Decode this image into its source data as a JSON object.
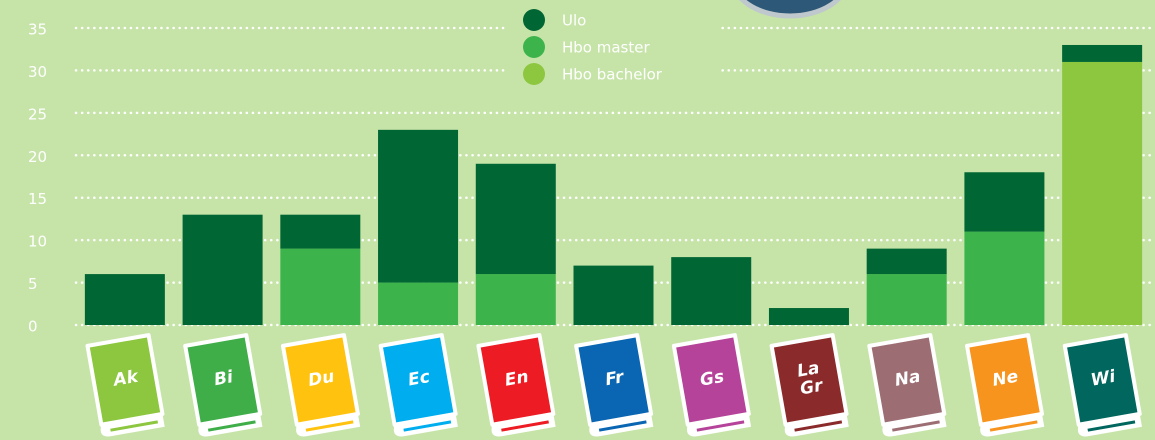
{
  "chart_data": {
    "type": "stacked_bar",
    "categories": [
      "Ak",
      "Bi",
      "Du",
      "Ec",
      "En",
      "Fr",
      "Gs",
      "La Gr",
      "Na",
      "Ne",
      "Wi"
    ],
    "category_colors": [
      "#8dc63f",
      "#3fae49",
      "#ffc20e",
      "#00aeef",
      "#ed1c24",
      "#0a66b2",
      "#b5439a",
      "#8b2a2a",
      "#9c6e74",
      "#f7941d",
      "#00665e"
    ],
    "series": [
      {
        "name": "Hbo bachelor",
        "color": "#8dc63f",
        "values": [
          0,
          0,
          0,
          0,
          0,
          0,
          0,
          0,
          0,
          0,
          31
        ]
      },
      {
        "name": "Hbo master",
        "color": "#3cb44b",
        "values": [
          0,
          0,
          9,
          5,
          6,
          0,
          0,
          0,
          6,
          11,
          0
        ]
      },
      {
        "name": "Ulo",
        "color": "#006633",
        "values": [
          6,
          13,
          4,
          18,
          13,
          7,
          8,
          2,
          3,
          7,
          2
        ]
      }
    ],
    "ylim": [
      0,
      35
    ],
    "yticks": [
      0,
      5,
      10,
      15,
      20,
      25,
      30,
      35
    ],
    "grid": true
  }
}
